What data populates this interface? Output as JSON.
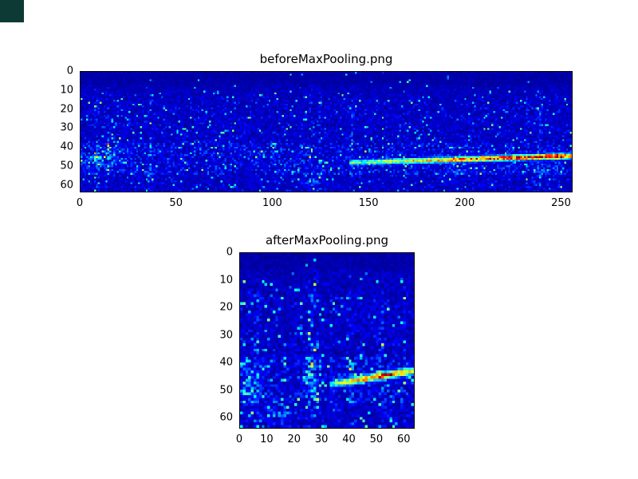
{
  "figure": {
    "background": "#ffffff",
    "corner_artifact_color": "#0d3a34"
  },
  "chart_data": [
    {
      "type": "heatmap",
      "title": "beforeMaxPooling.png",
      "colormap": "jet",
      "cols": 256,
      "rows": 64,
      "x_range": [
        0,
        256
      ],
      "y_range": [
        0,
        64
      ],
      "x_ticks": [
        0,
        50,
        100,
        150,
        200,
        250
      ],
      "y_ticks": [
        0,
        10,
        20,
        30,
        40,
        50,
        60
      ],
      "grid": false,
      "legend": false,
      "seed": 1337,
      "noise": {
        "quiet_rows": 7,
        "speckle": 0.035,
        "streak_cols": [
          8,
          14,
          36,
          120,
          124,
          141,
          232,
          239
        ]
      },
      "clusters": [
        {
          "col": 10,
          "row": 45,
          "w": 16,
          "h": 8,
          "amount": 0.3
        },
        {
          "col": 120,
          "row": 57,
          "w": 7,
          "h": 6,
          "amount": 0.25
        },
        {
          "col": 196,
          "row": 53,
          "w": 9,
          "h": 7,
          "amount": 0.2
        },
        {
          "col": 243,
          "row": 52,
          "w": 8,
          "h": 6,
          "amount": 0.22
        }
      ],
      "bands": [
        {
          "col_start": 140,
          "col_end": 256,
          "row_start": 48,
          "row_end": 44.5,
          "thickness": 1.5,
          "intensity_start": 0.45,
          "intensity_end": 1.02,
          "peak_col": 248
        }
      ],
      "description": "64x256 spectrogram-style image: mostly dark blue noise with sparse cyan speckles; a bright horizontal band near rows 43-48 runs from x~140 to x~255, turning from cyan-green to yellow to red toward the right edge"
    },
    {
      "type": "heatmap",
      "title": "afterMaxPooling.png",
      "colormap": "jet",
      "cols": 64,
      "rows": 64,
      "x_range": [
        0,
        64
      ],
      "y_range": [
        0,
        64
      ],
      "x_ticks": [
        0,
        10,
        20,
        30,
        40,
        50,
        60
      ],
      "y_ticks": [
        0,
        10,
        20,
        30,
        40,
        50,
        60
      ],
      "grid": false,
      "legend": false,
      "seed": 2025,
      "noise": {
        "quiet_rows": 6,
        "speckle": 0.05,
        "streak_cols": [
          6,
          25,
          27,
          40,
          52
        ]
      },
      "clusters": [
        {
          "col": 3,
          "row": 50,
          "w": 5,
          "h": 8,
          "amount": 0.3
        },
        {
          "col": 14,
          "row": 58,
          "w": 7,
          "h": 5,
          "amount": 0.3
        },
        {
          "col": 26,
          "row": 44,
          "w": 4,
          "h": 13,
          "amount": 0.2
        }
      ],
      "bands": [
        {
          "col_start": 33,
          "col_end": 64,
          "row_start": 47.5,
          "row_end": 42.5,
          "thickness": 1.4,
          "intensity_start": 0.4,
          "intensity_end": 0.92,
          "peak_col": 53
        }
      ],
      "description": "64x64 max-pooled spectrogram: dark blue noise with a slightly rising bright band from (x~33, row~48) to (x~63, row~42), brightest yellow-orange around x 47-57"
    }
  ]
}
